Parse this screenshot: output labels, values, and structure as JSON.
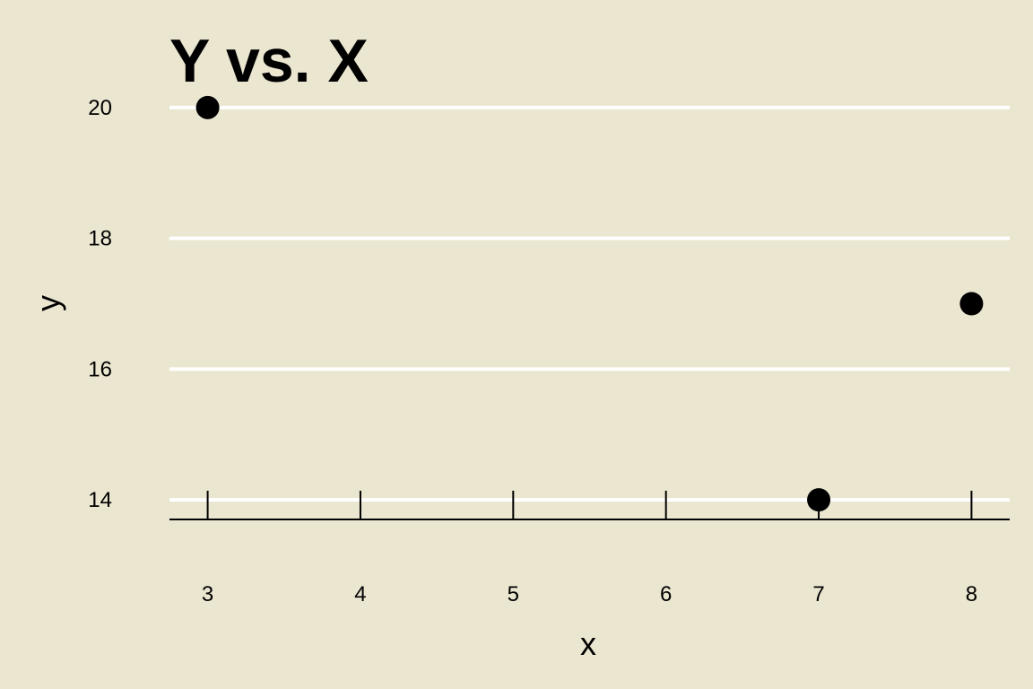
{
  "chart_data": {
    "type": "scatter",
    "title": "Y vs. X",
    "xlabel": "x",
    "ylabel": "y",
    "x": [
      3,
      7,
      8
    ],
    "y": [
      20,
      14,
      17
    ],
    "xticks": [
      3,
      4,
      5,
      6,
      7,
      8
    ],
    "yticks": [
      14,
      16,
      18,
      20
    ],
    "xlim": [
      2.75,
      8.25
    ],
    "ylim": [
      13.7,
      20.3
    ],
    "grid": "horizontal",
    "colors": {
      "background": "#ebe6d0",
      "gridline": "#ffffff",
      "point": "#000000",
      "axis": "#000000"
    }
  }
}
